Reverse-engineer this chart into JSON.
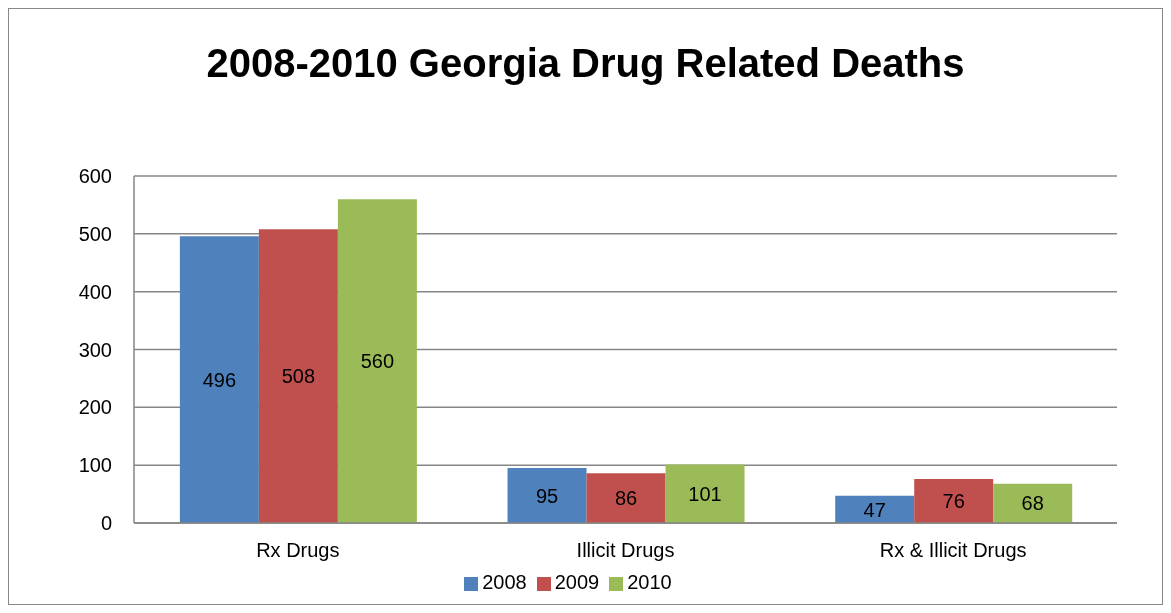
{
  "chart_data": {
    "type": "bar",
    "title": "2008-2010 Georgia Drug Related Deaths",
    "categories": [
      "Rx Drugs",
      "Illicit Drugs",
      "Rx & Illicit Drugs"
    ],
    "series": [
      {
        "name": "2008",
        "color": "#4f81bd",
        "values": [
          496,
          95,
          47
        ]
      },
      {
        "name": "2009",
        "color": "#c0504d",
        "values": [
          508,
          86,
          76
        ]
      },
      {
        "name": "2010",
        "color": "#9bbb59",
        "values": [
          560,
          101,
          68
        ]
      }
    ],
    "ylim": [
      0,
      600
    ],
    "yticks": [
      0,
      100,
      200,
      300,
      400,
      500,
      600
    ],
    "grid": "y",
    "legend": "bottom",
    "data_labels": true
  }
}
